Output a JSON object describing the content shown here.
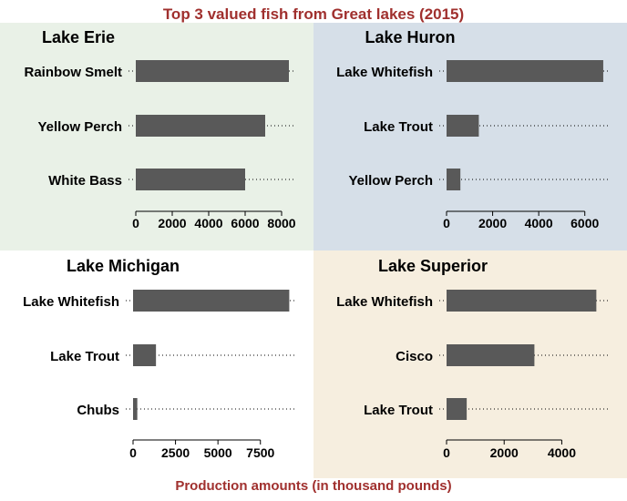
{
  "title": "Top 3 valued fish from Great lakes (2015)",
  "xlabel": "Production amounts (in thousand pounds)",
  "colors": {
    "title": "#a0302e",
    "bar": "#595959",
    "panel_erie": "#e9f1e7",
    "panel_huron": "#d6dfe8",
    "panel_michigan": "#ffffff",
    "panel_superior": "#f6eedf"
  },
  "chart_data": [
    {
      "type": "bar",
      "orientation": "horizontal",
      "title": "Lake Erie",
      "categories": [
        "Rainbow Smelt",
        "Yellow Perch",
        "White Bass"
      ],
      "values": [
        8400,
        7100,
        6000
      ],
      "xlim": [
        0,
        8700
      ],
      "xticks": [
        0,
        2000,
        4000,
        6000,
        8000
      ],
      "xtick_labels": [
        "0",
        "2000",
        "4000",
        "6000",
        "8000"
      ]
    },
    {
      "type": "bar",
      "orientation": "horizontal",
      "title": "Lake Huron",
      "categories": [
        "Lake Whitefish",
        "Lake Trout",
        "Yellow Perch"
      ],
      "values": [
        6800,
        1400,
        600
      ],
      "xlim": [
        0,
        7000
      ],
      "xticks": [
        0,
        2000,
        4000,
        6000
      ],
      "xtick_labels": [
        "0",
        "2000",
        "4000",
        "6000"
      ]
    },
    {
      "type": "bar",
      "orientation": "horizontal",
      "title": "Lake Michigan",
      "categories": [
        "Lake Whitefish",
        "Lake Trout",
        "Chubs"
      ],
      "values": [
        9200,
        1350,
        250
      ],
      "xlim": [
        0,
        9500
      ],
      "xticks": [
        0,
        2500,
        5000,
        7500
      ],
      "xtick_labels": [
        "0",
        "2500",
        "5000",
        "7500"
      ]
    },
    {
      "type": "bar",
      "orientation": "horizontal",
      "title": "Lake Superior",
      "categories": [
        "Lake Whitefish",
        "Cisco",
        "Lake Trout"
      ],
      "values": [
        5200,
        3050,
        700
      ],
      "xlim": [
        0,
        5600
      ],
      "xticks": [
        0,
        2000,
        4000
      ],
      "xtick_labels": [
        "0",
        "2000",
        "4000"
      ]
    }
  ]
}
